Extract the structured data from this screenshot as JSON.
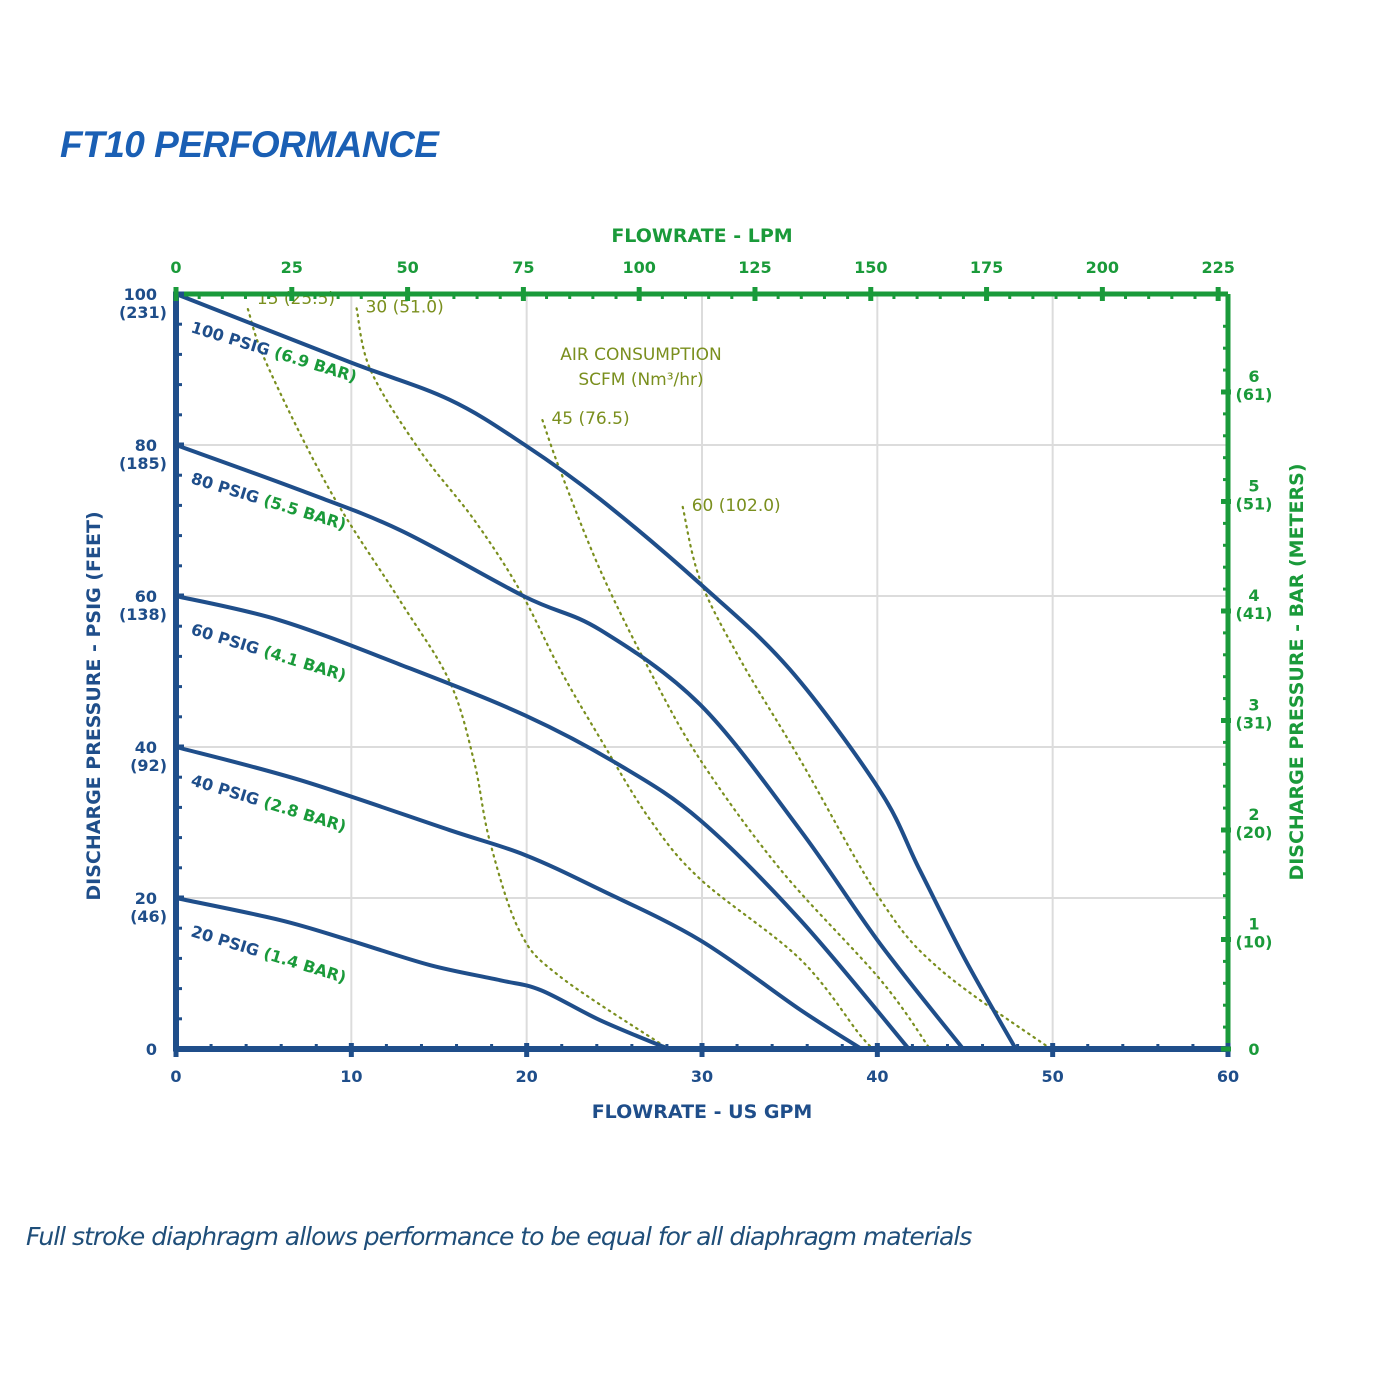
{
  "title": "FT10 PERFORMANCE",
  "footnote": "Full stroke diaphragm allows performance to be equal for all diaphragm materials",
  "colors": {
    "curve": "#1f4e8a",
    "left_axis": "#1f4e8a",
    "top_right_axis": "#1a9a3a",
    "air_lines": "#7a8f1e",
    "grid": "#dcdcdc"
  },
  "chart_data": {
    "type": "line",
    "title": "FT10 PERFORMANCE",
    "xlabel": "FLOWRATE - US GPM",
    "ylabel": "DISCHARGE PRESSURE - PSIG (FEET)",
    "x2label": "FLOWRATE - LPM",
    "y2label": "DISCHARGE PRESSURE - BAR (METERS)",
    "xlim": [
      0,
      60
    ],
    "ylim": [
      0,
      100
    ],
    "grid": true,
    "x_ticks": [
      "0",
      "10",
      "20",
      "30",
      "40",
      "50",
      "60"
    ],
    "y_ticks": [
      {
        "value": 0,
        "label": "0",
        "sub": ""
      },
      {
        "value": 20,
        "label": "20",
        "sub": "(46)"
      },
      {
        "value": 40,
        "label": "40",
        "sub": "(92)"
      },
      {
        "value": 60,
        "label": "60",
        "sub": "(138)"
      },
      {
        "value": 80,
        "label": "80",
        "sub": "(185)"
      },
      {
        "value": 100,
        "label": "100",
        "sub": "(231)"
      }
    ],
    "x2_ticks_lpm": [
      "0",
      "25",
      "50",
      "75",
      "100",
      "125",
      "150",
      "175",
      "200",
      "225"
    ],
    "y2_ticks_bar": [
      {
        "value": 0,
        "label": "0",
        "sub": ""
      },
      {
        "value": 1,
        "label": "1",
        "sub": "(10)"
      },
      {
        "value": 2,
        "label": "2",
        "sub": "(20)"
      },
      {
        "value": 3,
        "label": "3",
        "sub": "(31)"
      },
      {
        "value": 4,
        "label": "4",
        "sub": "(41)"
      },
      {
        "value": 5,
        "label": "5",
        "sub": "(51)"
      },
      {
        "value": 6,
        "label": "6",
        "sub": "(61)"
      }
    ],
    "series": [
      {
        "name": "100 PSIG",
        "bar": "(6.9 BAR)",
        "points": [
          [
            0,
            100
          ],
          [
            9.9,
            91
          ],
          [
            15.6,
            86
          ],
          [
            19.9,
            80
          ],
          [
            24.2,
            72.8
          ],
          [
            29.9,
            61.6
          ],
          [
            35,
            50.3
          ],
          [
            40.1,
            34.4
          ],
          [
            42.4,
            23.8
          ],
          [
            45,
            11.9
          ],
          [
            47.9,
            0
          ]
        ]
      },
      {
        "name": "80 PSIG",
        "bar": "(5.5 BAR)",
        "points": [
          [
            0,
            80
          ],
          [
            7.1,
            74
          ],
          [
            12.8,
            68.7
          ],
          [
            19.9,
            59.9
          ],
          [
            24.2,
            55.5
          ],
          [
            29.9,
            45.6
          ],
          [
            35.6,
            29
          ],
          [
            40.2,
            13.8
          ],
          [
            44.9,
            0
          ]
        ]
      },
      {
        "name": "60 PSIG",
        "bar": "(4.1 BAR)",
        "points": [
          [
            0,
            60
          ],
          [
            5.9,
            56.8
          ],
          [
            12.8,
            50.9
          ],
          [
            19.9,
            44.2
          ],
          [
            25.3,
            37.6
          ],
          [
            29.9,
            30.3
          ],
          [
            35.6,
            17.1
          ],
          [
            41.8,
            0
          ]
        ]
      },
      {
        "name": "40 PSIG",
        "bar": "(2.8 BAR)",
        "points": [
          [
            0,
            40
          ],
          [
            7.1,
            35.6
          ],
          [
            15.6,
            29
          ],
          [
            19.9,
            25.7
          ],
          [
            24.2,
            21.1
          ],
          [
            29.9,
            14.4
          ],
          [
            35.6,
            5.2
          ],
          [
            39.1,
            0
          ]
        ]
      },
      {
        "name": "20 PSIG",
        "bar": "(1.4 BAR)",
        "points": [
          [
            0,
            20
          ],
          [
            5.9,
            17.1
          ],
          [
            9.9,
            14.4
          ],
          [
            14.5,
            11.1
          ],
          [
            18.5,
            9.1
          ],
          [
            20.8,
            7.8
          ],
          [
            24.2,
            3.8
          ],
          [
            28.1,
            0
          ]
        ]
      }
    ],
    "air_consumption": {
      "title": "AIR CONSUMPTION",
      "unit": "SCFM (Nm³/hr)",
      "lines": [
        {
          "label": "15 (25.5)",
          "points": [
            [
              4.1,
              98
            ],
            [
              5.2,
              90.6
            ],
            [
              8.8,
              73.9
            ],
            [
              12.8,
              59.3
            ],
            [
              15.6,
              48.7
            ],
            [
              17,
              38.1
            ],
            [
              17.9,
              27.5
            ],
            [
              19.6,
              15.6
            ],
            [
              21.9,
              9.6
            ],
            [
              28.1,
              0
            ]
          ]
        },
        {
          "label": "30 (51.0)",
          "points": [
            [
              10.3,
              98.1
            ],
            [
              11.1,
              89.9
            ],
            [
              13.9,
              79.3
            ],
            [
              17,
              70.1
            ],
            [
              19.6,
              60.8
            ],
            [
              21.9,
              50.3
            ],
            [
              24.2,
              41.1
            ],
            [
              27,
              30.5
            ],
            [
              29.9,
              22.5
            ],
            [
              35.6,
              11.9
            ],
            [
              39,
              1.9
            ],
            [
              39.8,
              0
            ]
          ]
        },
        {
          "label": "45 (76.5)",
          "points": [
            [
              20.9,
              83.3
            ],
            [
              21.9,
              76.7
            ],
            [
              24.2,
              63.4
            ],
            [
              27,
              50.2
            ],
            [
              29.9,
              38.3
            ],
            [
              34.5,
              23.7
            ],
            [
              40.2,
              9.1
            ],
            [
              43,
              0
            ]
          ]
        },
        {
          "label": "60 (102.0)",
          "points": [
            [
              28.9,
              71.8
            ],
            [
              29.9,
              62.1
            ],
            [
              32.2,
              51.5
            ],
            [
              35.6,
              38.3
            ],
            [
              40.2,
              19.7
            ],
            [
              43.6,
              10.5
            ],
            [
              49.9,
              0
            ]
          ]
        }
      ]
    }
  }
}
